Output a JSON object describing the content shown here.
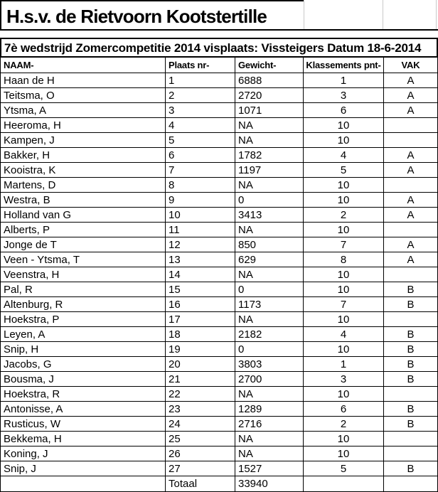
{
  "app": {
    "title": "H.s.v. de Rietvoorn Kootstertille"
  },
  "subtitle": "7è wedstrijd Zomercompetitie 2014 visplaats: Vissteigers Datum 18-6-2014",
  "table": {
    "columns": [
      {
        "key": "naam",
        "label": "NAAM-"
      },
      {
        "key": "plaats",
        "label": "Plaats nr-"
      },
      {
        "key": "gewicht",
        "label": "Gewicht-"
      },
      {
        "key": "pnt",
        "label": "Klassements pnt-"
      },
      {
        "key": "vak",
        "label": "VAK"
      }
    ],
    "rows": [
      {
        "naam": "Haan de H",
        "plaats": "1",
        "gewicht": "6888",
        "pnt": "1",
        "vak": "A"
      },
      {
        "naam": "Teitsma, O",
        "plaats": "2",
        "gewicht": "2720",
        "pnt": "3",
        "vak": "A"
      },
      {
        "naam": "Ytsma, A",
        "plaats": "3",
        "gewicht": "1071",
        "pnt": "6",
        "vak": "A"
      },
      {
        "naam": "Heeroma, H",
        "plaats": "4",
        "gewicht": "NA",
        "pnt": "10",
        "vak": ""
      },
      {
        "naam": "Kampen, J",
        "plaats": "5",
        "gewicht": "NA",
        "pnt": "10",
        "vak": ""
      },
      {
        "naam": "Bakker, H",
        "plaats": "6",
        "gewicht": "1782",
        "pnt": "4",
        "vak": "A"
      },
      {
        "naam": "Kooistra, K",
        "plaats": "7",
        "gewicht": "1197",
        "pnt": "5",
        "vak": "A"
      },
      {
        "naam": "Martens, D",
        "plaats": "8",
        "gewicht": "NA",
        "pnt": "10",
        "vak": ""
      },
      {
        "naam": "Westra, B",
        "plaats": "9",
        "gewicht": "0",
        "pnt": "10",
        "vak": "A"
      },
      {
        "naam": "Holland van G",
        "plaats": "10",
        "gewicht": "3413",
        "pnt": "2",
        "vak": "A"
      },
      {
        "naam": "Alberts, P",
        "plaats": "11",
        "gewicht": "NA",
        "pnt": "10",
        "vak": ""
      },
      {
        "naam": "Jonge de T",
        "plaats": "12",
        "gewicht": "850",
        "pnt": "7",
        "vak": "A"
      },
      {
        "naam": "Veen - Ytsma, T",
        "plaats": "13",
        "gewicht": "629",
        "pnt": "8",
        "vak": "A"
      },
      {
        "naam": "Veenstra, H",
        "plaats": "14",
        "gewicht": "NA",
        "pnt": "10",
        "vak": ""
      },
      {
        "naam": "Pal, R",
        "plaats": "15",
        "gewicht": "0",
        "pnt": "10",
        "vak": "B"
      },
      {
        "naam": "Altenburg, R",
        "plaats": "16",
        "gewicht": "1173",
        "pnt": "7",
        "vak": "B"
      },
      {
        "naam": "Hoekstra, P",
        "plaats": "17",
        "gewicht": "NA",
        "pnt": "10",
        "vak": ""
      },
      {
        "naam": "Leyen, A",
        "plaats": "18",
        "gewicht": "2182",
        "pnt": "4",
        "vak": "B"
      },
      {
        "naam": "Snip, H",
        "plaats": "19",
        "gewicht": "0",
        "pnt": "10",
        "vak": "B"
      },
      {
        "naam": "Jacobs, G",
        "plaats": "20",
        "gewicht": "3803",
        "pnt": "1",
        "vak": "B"
      },
      {
        "naam": "Bousma, J",
        "plaats": "21",
        "gewicht": "2700",
        "pnt": "3",
        "vak": "B"
      },
      {
        "naam": "Hoekstra, R",
        "plaats": "22",
        "gewicht": "NA",
        "pnt": "10",
        "vak": ""
      },
      {
        "naam": "Antonisse, A",
        "plaats": "23",
        "gewicht": "1289",
        "pnt": "6",
        "vak": "B"
      },
      {
        "naam": "Rusticus, W",
        "plaats": "24",
        "gewicht": "2716",
        "pnt": "2",
        "vak": "B"
      },
      {
        "naam": "Bekkema, H",
        "plaats": "25",
        "gewicht": "NA",
        "pnt": "10",
        "vak": ""
      },
      {
        "naam": "Koning, J",
        "plaats": "26",
        "gewicht": "NA",
        "pnt": "10",
        "vak": ""
      },
      {
        "naam": "Snip, J",
        "plaats": "27",
        "gewicht": "1527",
        "pnt": "5",
        "vak": "B"
      }
    ],
    "footer": {
      "label": "Totaal",
      "total": "33940"
    }
  },
  "colors": {
    "border": "#000000",
    "gridline": "#c9c9c9",
    "background": "#ffffff",
    "text": "#000000"
  }
}
